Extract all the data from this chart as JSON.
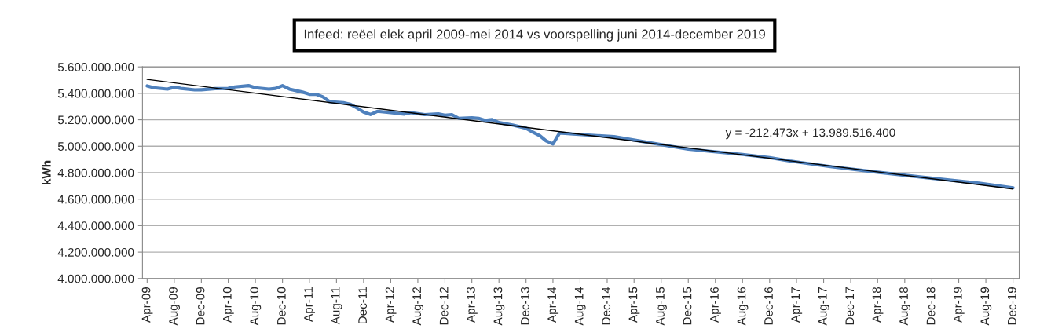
{
  "chart_data": {
    "type": "line",
    "title": "Infeed: reëel elek april 2009-mei 2014 vs voorspelling juni 2014-december 2019",
    "ylabel": "kWh",
    "series": [
      {
        "color": "#4f81bd",
        "x": [
          "2009-04",
          "2009-05",
          "2009-07",
          "2009-08",
          "2009-09",
          "2009-11",
          "2009-12",
          "2010-02",
          "2010-04",
          "2010-05",
          "2010-07",
          "2010-08",
          "2010-10",
          "2010-11",
          "2010-12",
          "2011-01",
          "2011-03",
          "2011-04",
          "2011-05",
          "2011-06",
          "2011-07",
          "2011-09",
          "2011-10",
          "2011-11",
          "2011-12",
          "2012-01",
          "2012-02",
          "2012-04",
          "2012-06",
          "2012-07",
          "2012-09",
          "2012-11",
          "2012-12",
          "2013-01",
          "2013-02",
          "2013-04",
          "2013-05",
          "2013-06",
          "2013-07",
          "2013-08",
          "2013-10",
          "2013-12",
          "2014-01",
          "2014-02",
          "2014-03",
          "2014-04",
          "2014-05",
          "2014-07",
          "2015-01",
          "2015-12",
          "2016-08",
          "2016-12",
          "2017-03",
          "2017-09",
          "2018-04",
          "2018-11",
          "2019-07",
          "2019-12"
        ],
        "values": [
          5456000000,
          5442000000,
          5432000000,
          5446000000,
          5437000000,
          5426000000,
          5427000000,
          5436000000,
          5437000000,
          5448000000,
          5458000000,
          5442000000,
          5432000000,
          5437000000,
          5458000000,
          5432000000,
          5409000000,
          5393000000,
          5393000000,
          5373000000,
          5337000000,
          5329000000,
          5318000000,
          5290000000,
          5258000000,
          5240000000,
          5264000000,
          5254000000,
          5243000000,
          5254000000,
          5239000000,
          5244000000,
          5234000000,
          5239000000,
          5211000000,
          5215000000,
          5211000000,
          5195000000,
          5201000000,
          5179000000,
          5160000000,
          5136000000,
          5106000000,
          5080000000,
          5041000000,
          5017000000,
          5100000000,
          5092000000,
          5072000000,
          4978000000,
          4938000000,
          4914000000,
          4889000000,
          4846000000,
          4804000000,
          4764000000,
          4721000000,
          4686000000
        ]
      },
      {
        "type": "line",
        "color": "#000000",
        "x": [
          "2009-04",
          "2019-12"
        ],
        "values": [
          5505000000,
          4677000000
        ]
      }
    ],
    "annotations": [
      "y = -212.473x + 13.989.516.400"
    ],
    "xlim": [
      "2009-03-11",
      "2019-12-29"
    ],
    "xticks": [
      {
        "value": "2009-04",
        "label": "Apr-09"
      },
      {
        "value": "2009-08",
        "label": "Aug-09"
      },
      {
        "value": "2009-12",
        "label": "Dec-09"
      },
      {
        "value": "2010-04",
        "label": "Apr-10"
      },
      {
        "value": "2010-08",
        "label": "Aug-10"
      },
      {
        "value": "2010-12",
        "label": "Dec-10"
      },
      {
        "value": "2011-04",
        "label": "Apr-11"
      },
      {
        "value": "2011-08",
        "label": "Aug-11"
      },
      {
        "value": "2011-12",
        "label": "Dec-11"
      },
      {
        "value": "2012-04",
        "label": "Apr-12"
      },
      {
        "value": "2012-08",
        "label": "Aug-12"
      },
      {
        "value": "2012-12",
        "label": "Dec-12"
      },
      {
        "value": "2013-04",
        "label": "Apr-13"
      },
      {
        "value": "2013-08",
        "label": "Aug-13"
      },
      {
        "value": "2013-12",
        "label": "Dec-13"
      },
      {
        "value": "2014-04",
        "label": "Apr-14"
      },
      {
        "value": "2014-08",
        "label": "Aug-14"
      },
      {
        "value": "2014-12",
        "label": "Dec-14"
      },
      {
        "value": "2015-04",
        "label": "Apr-15"
      },
      {
        "value": "2015-08",
        "label": "Aug-15"
      },
      {
        "value": "2015-12",
        "label": "Dec-15"
      },
      {
        "value": "2016-04",
        "label": "Apr-16"
      },
      {
        "value": "2016-08",
        "label": "Aug-16"
      },
      {
        "value": "2016-12",
        "label": "Dec-16"
      },
      {
        "value": "2017-04",
        "label": "Apr-17"
      },
      {
        "value": "2017-08",
        "label": "Aug-17"
      },
      {
        "value": "2017-12",
        "label": "Dec-17"
      },
      {
        "value": "2018-04",
        "label": "Apr-18"
      },
      {
        "value": "2018-08",
        "label": "Aug-18"
      },
      {
        "value": "2018-12",
        "label": "Dec-18"
      },
      {
        "value": "2019-04",
        "label": "Apr-19"
      },
      {
        "value": "2019-08",
        "label": "Aug-19"
      },
      {
        "value": "2019-12",
        "label": "Dec-19"
      }
    ],
    "ylim": [
      4000000000,
      5600000000
    ],
    "yticks": [
      {
        "value": 4000000000,
        "label": "4.000.000.000"
      },
      {
        "value": 4200000000,
        "label": "4.200.000.000"
      },
      {
        "value": 4400000000,
        "label": "4.400.000.000"
      },
      {
        "value": 4600000000,
        "label": "4.600.000.000"
      },
      {
        "value": 4800000000,
        "label": "4.800.000.000"
      },
      {
        "value": 5000000000,
        "label": "5.000.000.000"
      },
      {
        "value": 5200000000,
        "label": "5.200.000.000"
      },
      {
        "value": 5400000000,
        "label": "5.400.000.000"
      },
      {
        "value": 5600000000,
        "label": "5.600.000.000"
      }
    ],
    "grid": "y",
    "legend": false
  }
}
